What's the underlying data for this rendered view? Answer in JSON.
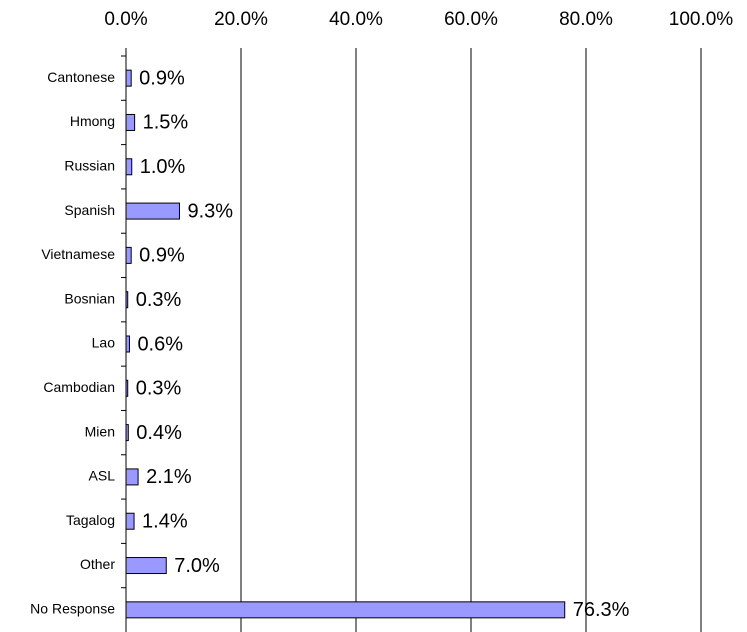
{
  "chart_data": {
    "type": "bar",
    "orientation": "horizontal",
    "categories": [
      "Cantonese",
      "Hmong",
      "Russian",
      "Spanish",
      "Vietnamese",
      "Bosnian",
      "Lao",
      "Cambodian",
      "Mien",
      "ASL",
      "Tagalog",
      "Other",
      "No Response"
    ],
    "values": [
      0.9,
      1.5,
      1.0,
      9.3,
      0.9,
      0.3,
      0.6,
      0.3,
      0.4,
      2.1,
      1.4,
      7.0,
      76.3
    ],
    "value_labels": [
      "0.9%",
      "1.5%",
      "1.0%",
      "9.3%",
      "0.9%",
      "0.3%",
      "0.6%",
      "0.3%",
      "0.4%",
      "2.1%",
      "1.4%",
      "7.0%",
      "76.3%"
    ],
    "color": "#9999ff",
    "xlim": [
      0,
      100
    ],
    "xticks": [
      {
        "value": 0,
        "label": "0.0%"
      },
      {
        "value": 20,
        "label": "20.0%"
      },
      {
        "value": 40,
        "label": "40.0%"
      },
      {
        "value": 60,
        "label": "60.0%"
      },
      {
        "value": 80,
        "label": "80.0%"
      },
      {
        "value": 100,
        "label": "100.0%"
      }
    ],
    "grid": true
  }
}
